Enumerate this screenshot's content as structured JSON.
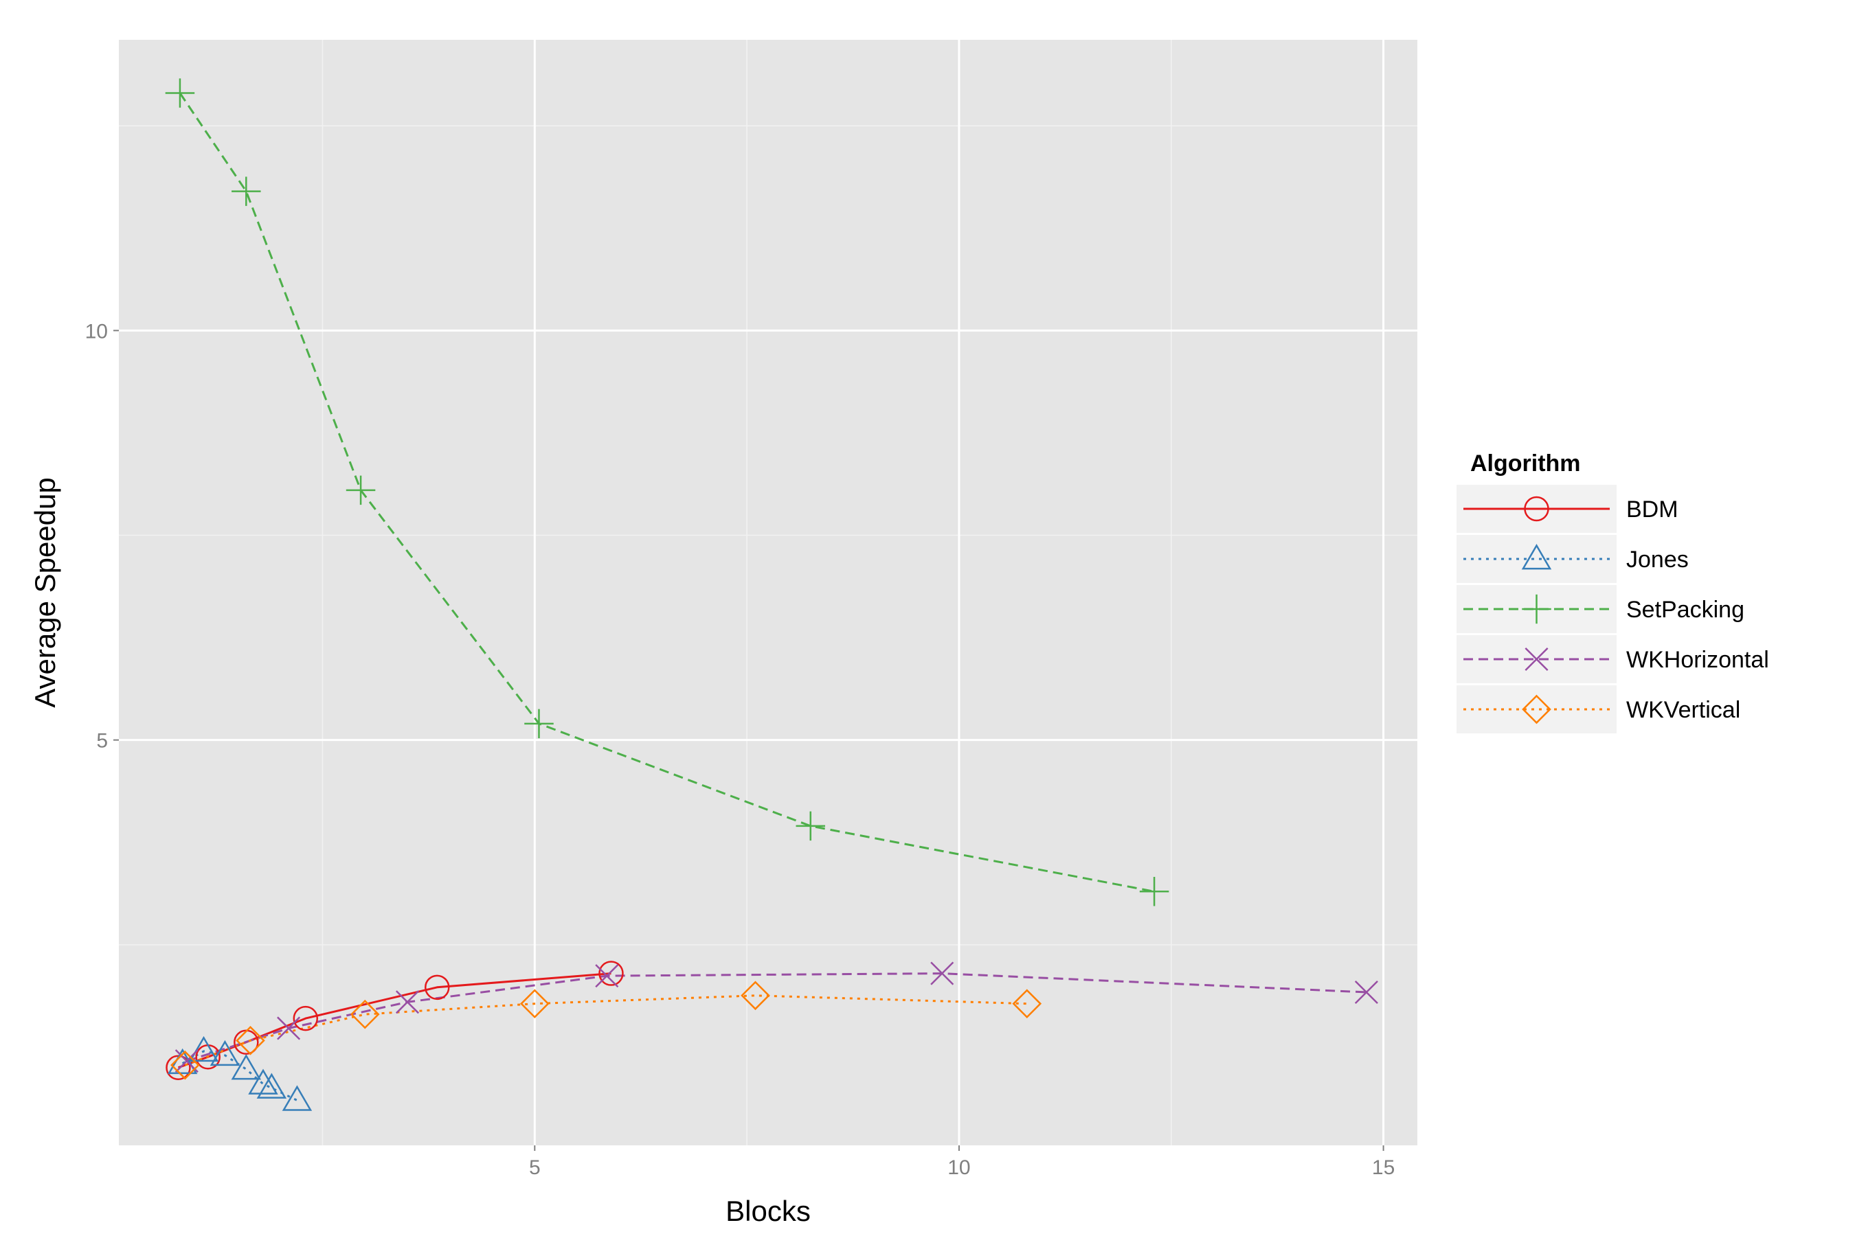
{
  "chart_data": {
    "type": "line",
    "title": "",
    "xlabel": "Blocks",
    "ylabel": "Average Speedup",
    "xlim": [
      0.1,
      15.4
    ],
    "ylim": [
      0.05,
      13.55
    ],
    "x_ticks": [
      5,
      10,
      15
    ],
    "y_ticks": [
      5,
      10
    ],
    "x_tick_labels": [
      "5",
      "10",
      "15"
    ],
    "y_tick_labels": [
      "5",
      "10"
    ],
    "grid": true,
    "legend": {
      "title": "Algorithm",
      "position": "right"
    },
    "series": [
      {
        "name": "BDM",
        "color": "#e41a1c",
        "marker": "circle",
        "linestyle": "solid",
        "points": [
          [
            0.8,
            1.0
          ],
          [
            1.15,
            1.13
          ],
          [
            1.6,
            1.31
          ],
          [
            2.3,
            1.6
          ],
          [
            3.85,
            1.98
          ],
          [
            5.9,
            2.15
          ]
        ]
      },
      {
        "name": "Jones",
        "color": "#377eb8",
        "marker": "triangle",
        "linestyle": "dotted",
        "points": [
          [
            0.85,
            1.05
          ],
          [
            1.1,
            1.2
          ],
          [
            1.35,
            1.15
          ],
          [
            1.6,
            0.98
          ],
          [
            1.8,
            0.8
          ],
          [
            1.9,
            0.75
          ],
          [
            2.2,
            0.6
          ]
        ]
      },
      {
        "name": "SetPacking",
        "color": "#4daf4a",
        "marker": "plus",
        "linestyle": "dashed",
        "points": [
          [
            0.82,
            12.9
          ],
          [
            1.6,
            11.7
          ],
          [
            2.95,
            8.05
          ],
          [
            5.05,
            5.2
          ],
          [
            8.25,
            3.95
          ],
          [
            12.3,
            3.15
          ]
        ]
      },
      {
        "name": "WKHorizontal",
        "color": "#984ea3",
        "marker": "x",
        "linestyle": "dashed",
        "points": [
          [
            0.9,
            1.08
          ],
          [
            2.1,
            1.48
          ],
          [
            3.5,
            1.8
          ],
          [
            5.85,
            2.12
          ],
          [
            9.8,
            2.15
          ],
          [
            14.8,
            1.92
          ]
        ]
      },
      {
        "name": "WKVertical",
        "color": "#ff7f00",
        "marker": "diamond",
        "linestyle": "dotted",
        "points": [
          [
            0.88,
            1.03
          ],
          [
            1.65,
            1.33
          ],
          [
            3.0,
            1.65
          ],
          [
            5.0,
            1.78
          ],
          [
            7.6,
            1.88
          ],
          [
            10.8,
            1.78
          ]
        ]
      }
    ]
  }
}
